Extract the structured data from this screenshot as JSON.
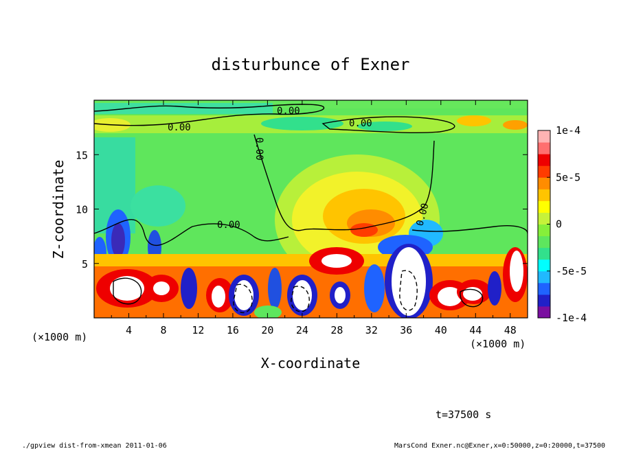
{
  "chart_data": {
    "type": "heatmap",
    "title": "disturbunce of Exner",
    "xlabel": "X-coordinate",
    "ylabel": "Z-coordinate",
    "x_unit_label": "(×1000 m)",
    "x_unit_label_right": "(×1000 m)",
    "xlim": [
      0,
      50
    ],
    "ylim": [
      0,
      20
    ],
    "x_ticks": [
      4,
      8,
      12,
      16,
      20,
      24,
      28,
      32,
      36,
      40,
      44,
      48
    ],
    "y_ticks": [
      5,
      10,
      15
    ],
    "colorbar": {
      "range": [
        -0.0001,
        0.0001
      ],
      "tick_values": [
        0.0001,
        5e-05,
        0,
        -5e-05,
        -0.0001
      ],
      "tick_labels": [
        "1e-4",
        "5e-5",
        "0",
        "-5e-5",
        "-1e-4"
      ],
      "colors": [
        "#7a0fa0",
        "#2020c8",
        "#1f63ff",
        "#21b9ff",
        "#00ffff",
        "#32e08c",
        "#5ee65e",
        "#86ef3a",
        "#c6f23a",
        "#ffff00",
        "#ffc400",
        "#ff8c00",
        "#ff3c00",
        "#ee0000",
        "#ff6f6f",
        "#ffb3b3"
      ]
    },
    "contour_labels": [
      "0.00",
      "0.00",
      "0.00",
      "0.00",
      "0.00",
      "0.00"
    ],
    "time_label": "t=37500 s"
  },
  "footer": {
    "left": "./gpview_dist-from-xmean  2011-01-06",
    "right": "MarsCond_Exner.nc@Exner,x=0:50000,z=0:20000,t=37500"
  }
}
